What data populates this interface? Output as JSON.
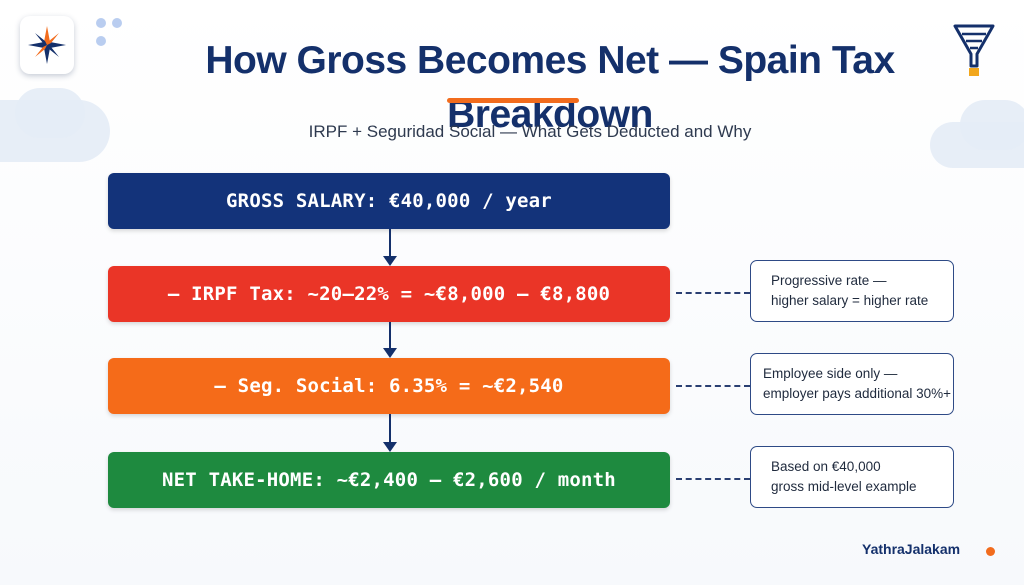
{
  "header": {
    "title": "How Gross Becomes Net — Spain Tax Breakdown",
    "subtitle": "IRPF + Seguridad Social — What Gets Deducted and Why",
    "logo_icon": "compass-star-icon",
    "decor_icon": "funnel-icon"
  },
  "flow": {
    "steps": [
      {
        "label": "GROSS SALARY: €40,000 / year",
        "color": "#13337a"
      },
      {
        "label": "— IRPF Tax: ~20–22% = ~€8,000 – €8,800",
        "color": "#ea3527"
      },
      {
        "label": "— Seg. Social: 6.35% = ~€2,540",
        "color": "#f56b19"
      },
      {
        "label": "NET TAKE-HOME: ~€2,400 – €2,600 / month",
        "color": "#1e8a3f"
      }
    ]
  },
  "notes": [
    {
      "line1": "Progressive rate —",
      "line2": "higher salary = higher rate"
    },
    {
      "line1": "Employee side only —",
      "line2": "employer pays additional 30%+"
    },
    {
      "line1": "Based on €40,000",
      "line2": "gross mid-level example"
    }
  ],
  "footer": {
    "brand": "YathraJalakam",
    "accent": "#f26c1d"
  }
}
